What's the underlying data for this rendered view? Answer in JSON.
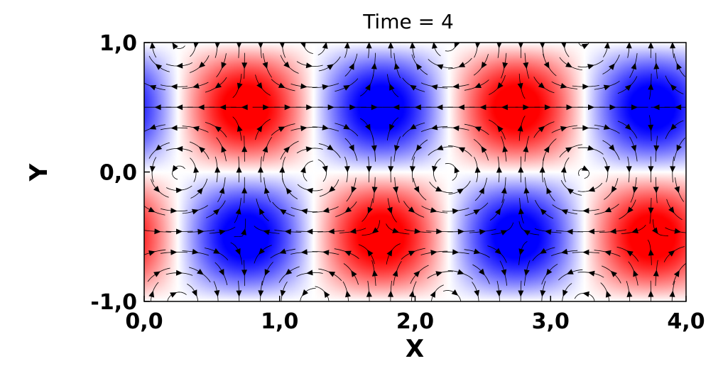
{
  "chart_data": {
    "type": "heatmap",
    "title": "Time = 4",
    "xlabel": "X",
    "ylabel": "Y",
    "xlim": [
      0.0,
      4.0
    ],
    "ylim": [
      -1.0,
      1.0
    ],
    "x_ticks": [
      {
        "value": 0.0,
        "label": "0,0"
      },
      {
        "value": 1.0,
        "label": "1,0"
      },
      {
        "value": 2.0,
        "label": "2,0"
      },
      {
        "value": 3.0,
        "label": "3,0"
      },
      {
        "value": 4.0,
        "label": "4,0"
      }
    ],
    "y_ticks": [
      {
        "value": -1.0,
        "label": "-1,0"
      },
      {
        "value": 0.0,
        "label": "0,0"
      },
      {
        "value": 1.0,
        "label": "1,0"
      }
    ],
    "grid": false,
    "field": {
      "description_of_pattern": "vorticity cells of alternating sign",
      "vortices": [
        {
          "x": 0.75,
          "y": 0.5,
          "sign": -1
        },
        {
          "x": 1.75,
          "y": 0.5,
          "sign": 1
        },
        {
          "x": 2.75,
          "y": 0.5,
          "sign": -1
        },
        {
          "x": 3.75,
          "y": 0.5,
          "sign": 1
        },
        {
          "x": 0.75,
          "y": -0.5,
          "sign": 1
        },
        {
          "x": 1.75,
          "y": -0.5,
          "sign": -1
        },
        {
          "x": 2.75,
          "y": -0.5,
          "sign": 1
        },
        {
          "x": 3.75,
          "y": -0.5,
          "sign": -1
        }
      ],
      "positive_color": "#ff0000",
      "negative_color": "#0000ff",
      "zero_color": "#ffffff"
    },
    "vectors": {
      "color": "#000000",
      "style": "arrowed streamlines"
    }
  }
}
